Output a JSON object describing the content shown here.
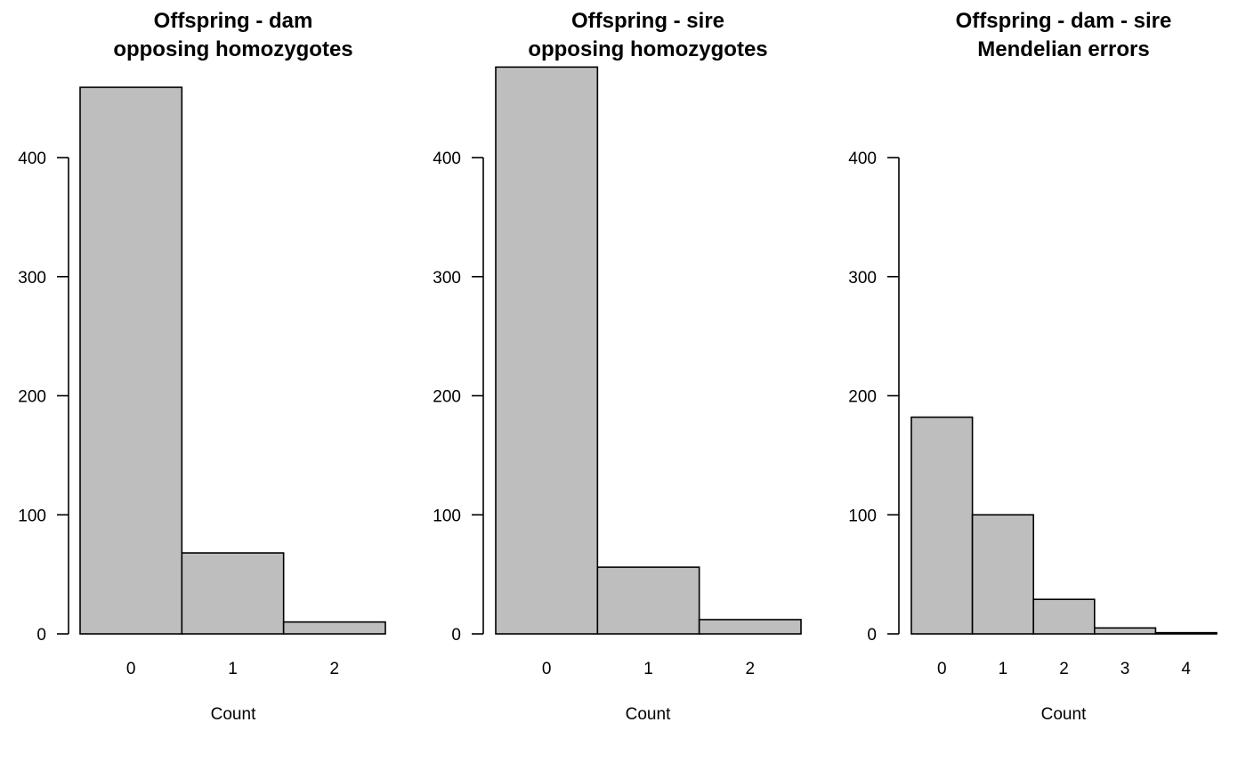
{
  "chart_data": [
    {
      "type": "bar",
      "title_lines": [
        "Offspring - dam",
        "opposing homozygotes"
      ],
      "xlabel": "Count",
      "ylabel": "",
      "categories": [
        "0",
        "1",
        "2"
      ],
      "values": [
        459,
        68,
        10
      ],
      "yticks": [
        0,
        100,
        200,
        300,
        400
      ],
      "ylim": [
        0,
        476
      ],
      "grid": false,
      "bar_color": "#bebebe"
    },
    {
      "type": "bar",
      "title_lines": [
        "Offspring - sire",
        "opposing homozygotes"
      ],
      "xlabel": "Count",
      "ylabel": "",
      "categories": [
        "0",
        "1",
        "2"
      ],
      "values": [
        476,
        56,
        12
      ],
      "yticks": [
        0,
        100,
        200,
        300,
        400
      ],
      "ylim": [
        0,
        476
      ],
      "grid": false,
      "bar_color": "#bebebe"
    },
    {
      "type": "bar",
      "title_lines": [
        "Offspring - dam - sire",
        "Mendelian errors"
      ],
      "xlabel": "Count",
      "ylabel": "",
      "categories": [
        "0",
        "1",
        "2",
        "3",
        "4"
      ],
      "values": [
        182,
        100,
        29,
        5,
        1
      ],
      "yticks": [
        0,
        100,
        200,
        300,
        400
      ],
      "ylim": [
        0,
        476
      ],
      "grid": false,
      "bar_color": "#bebebe"
    }
  ]
}
